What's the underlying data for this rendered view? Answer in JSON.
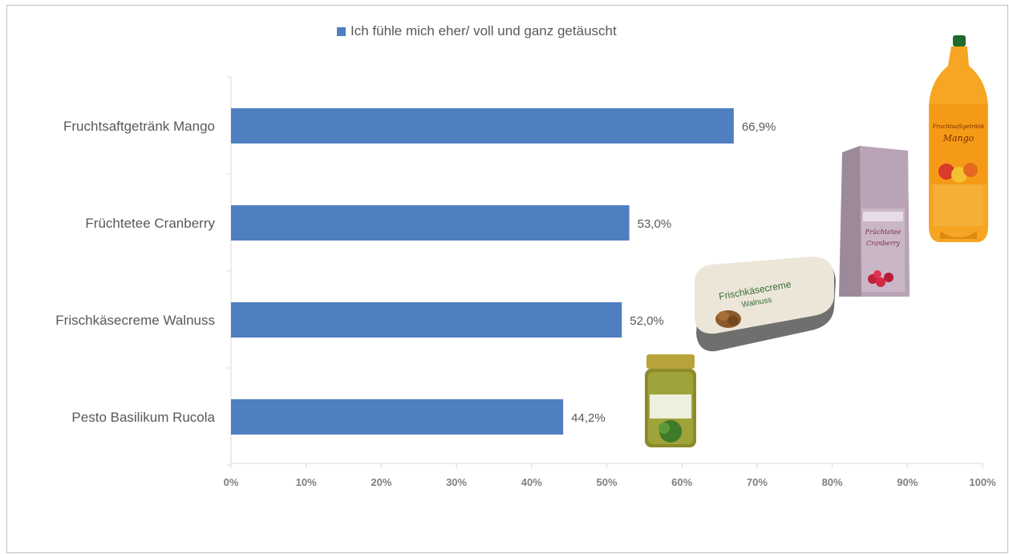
{
  "colors": {
    "bar": "#4f7ec1",
    "axis": "#d9d9d9",
    "text": "#595959"
  },
  "legend": {
    "label": "Ich fühle mich eher/ voll und ganz getäuscht"
  },
  "products": [
    {
      "icon": "mango-juice-bottle-icon",
      "label_lines": [
        "Fruchtsaftgetränk",
        "Mango"
      ]
    },
    {
      "icon": "cranberry-tea-package-icon",
      "label_lines": [
        "Früchtetee",
        "Cranberry"
      ]
    },
    {
      "icon": "walnut-cream-cheese-tub-icon",
      "label_lines": [
        "Frischkäsecreme",
        "Walnuss"
      ]
    },
    {
      "icon": "pesto-jar-icon",
      "label_lines": []
    }
  ],
  "chart_data": {
    "type": "bar",
    "orientation": "horizontal",
    "categories": [
      "Fruchtsaftgetränk Mango",
      "Früchtetee Cranberry",
      "Frischkäsecreme Walnuss",
      "Pesto Basilikum Rucola"
    ],
    "series": [
      {
        "name": "Ich fühle mich eher/ voll und ganz getäuscht",
        "values": [
          66.9,
          53.0,
          52.0,
          44.2
        ],
        "value_labels": [
          "66,9%",
          "53,0%",
          "52,0%",
          "44,2%"
        ]
      }
    ],
    "xlim": [
      0,
      100
    ],
    "xticks": [
      0,
      10,
      20,
      30,
      40,
      50,
      60,
      70,
      80,
      90,
      100
    ],
    "xtick_labels": [
      "0%",
      "10%",
      "20%",
      "30%",
      "40%",
      "50%",
      "60%",
      "70%",
      "80%",
      "90%",
      "100%"
    ],
    "grid": false,
    "legend_position": "top"
  }
}
